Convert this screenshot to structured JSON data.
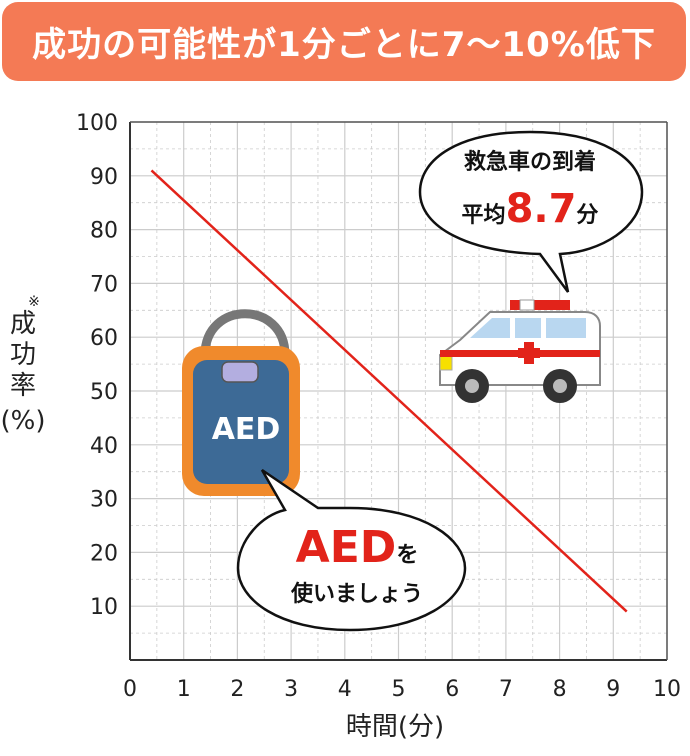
{
  "banner": {
    "text": "成功の可能性が1分ごとに7～10%低下",
    "color": "#f47a55"
  },
  "axis": {
    "ylabel_mark": "※",
    "ylabel_lines": [
      "成",
      "功",
      "率"
    ],
    "ylabel_unit": "(%)",
    "xlabel": "時間(分)"
  },
  "ambulance_bubble": {
    "line1": "救急車の到着",
    "line2_prefix": "平均",
    "line2_value": "8.7",
    "line2_suffix": "分"
  },
  "aed_bubble": {
    "line1_big": "AED",
    "line1_small": "を",
    "line2": "使いましょう"
  },
  "aed_device_label": "AED",
  "colors": {
    "line": "#e2231a",
    "highlight": "#e2231a",
    "grid": "#cccccc",
    "aed_body": "#3d6a96",
    "aed_frame": "#f08a2c"
  },
  "chart_data": {
    "type": "line",
    "x": [
      0.4,
      9.25
    ],
    "series": [
      {
        "values": [
          91,
          9
        ]
      }
    ],
    "xlabel": "時間(分)",
    "ylabel": "成功率(%)",
    "xlim": [
      0,
      10
    ],
    "ylim": [
      0,
      100
    ],
    "xticks": [
      0,
      1,
      2,
      3,
      4,
      5,
      6,
      7,
      8,
      9,
      10
    ],
    "yticks": [
      10,
      20,
      30,
      40,
      50,
      60,
      70,
      80,
      90,
      100
    ],
    "grid": true
  }
}
